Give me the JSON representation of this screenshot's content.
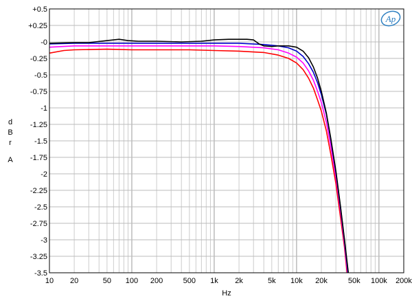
{
  "chart_data": {
    "type": "line",
    "title": "",
    "xlabel": "Hz",
    "ylabel_letters": [
      "d",
      "B",
      "r",
      "A"
    ],
    "x_scale": "log",
    "xlim": [
      10,
      200000
    ],
    "ylim": [
      -3.5,
      0.5
    ],
    "grid": true,
    "logo": "Ap",
    "logo_colors": {
      "stroke": "#2d7fc1",
      "text": "#2d7fc1"
    },
    "x_ticks": [
      {
        "v": 10,
        "label": "10"
      },
      {
        "v": 20,
        "label": "20"
      },
      {
        "v": 50,
        "label": "50"
      },
      {
        "v": 100,
        "label": "100"
      },
      {
        "v": 200,
        "label": "200"
      },
      {
        "v": 500,
        "label": "500"
      },
      {
        "v": 1000,
        "label": "1k"
      },
      {
        "v": 2000,
        "label": "2k"
      },
      {
        "v": 5000,
        "label": "5k"
      },
      {
        "v": 10000,
        "label": "10k"
      },
      {
        "v": 20000,
        "label": "20k"
      },
      {
        "v": 50000,
        "label": "50k"
      },
      {
        "v": 100000,
        "label": "100k"
      },
      {
        "v": 200000,
        "label": "200k"
      }
    ],
    "y_ticks": [
      {
        "v": 0.5,
        "label": "+0.5"
      },
      {
        "v": 0.25,
        "label": "+0.25"
      },
      {
        "v": 0,
        "label": "-0"
      },
      {
        "v": -0.25,
        "label": "-0.25"
      },
      {
        "v": -0.5,
        "label": "-0.5"
      },
      {
        "v": -0.75,
        "label": "-0.75"
      },
      {
        "v": -1,
        "label": "-1"
      },
      {
        "v": -1.25,
        "label": "-1.25"
      },
      {
        "v": -1.5,
        "label": "-1.5"
      },
      {
        "v": -1.75,
        "label": "-1.75"
      },
      {
        "v": -2,
        "label": "-2"
      },
      {
        "v": -2.25,
        "label": "-2.25"
      },
      {
        "v": -2.5,
        "label": "-2.5"
      },
      {
        "v": -2.75,
        "label": "-2.75"
      },
      {
        "v": -3,
        "label": "-3"
      },
      {
        "v": -3.25,
        "label": "-3.25"
      },
      {
        "v": -3.5,
        "label": "-3.5"
      }
    ],
    "series": [
      {
        "color": "#ff0000",
        "points": [
          [
            10,
            -0.17
          ],
          [
            15,
            -0.13
          ],
          [
            20,
            -0.12
          ],
          [
            50,
            -0.11
          ],
          [
            100,
            -0.12
          ],
          [
            200,
            -0.12
          ],
          [
            500,
            -0.12
          ],
          [
            1000,
            -0.13
          ],
          [
            2000,
            -0.14
          ],
          [
            4000,
            -0.16
          ],
          [
            6000,
            -0.2
          ],
          [
            8000,
            -0.25
          ],
          [
            10000,
            -0.32
          ],
          [
            12000,
            -0.42
          ],
          [
            14000,
            -0.55
          ],
          [
            16000,
            -0.7
          ],
          [
            18000,
            -0.88
          ],
          [
            20000,
            -1.05
          ],
          [
            23000,
            -1.35
          ],
          [
            26000,
            -1.7
          ],
          [
            30000,
            -2.15
          ],
          [
            34000,
            -2.65
          ],
          [
            38000,
            -3.1
          ],
          [
            41000,
            -3.5
          ]
        ]
      },
      {
        "color": "#ff00ff",
        "points": [
          [
            10,
            -0.08
          ],
          [
            20,
            -0.06
          ],
          [
            50,
            -0.06
          ],
          [
            100,
            -0.06
          ],
          [
            200,
            -0.06
          ],
          [
            500,
            -0.06
          ],
          [
            1000,
            -0.06
          ],
          [
            2000,
            -0.07
          ],
          [
            4000,
            -0.09
          ],
          [
            6000,
            -0.12
          ],
          [
            8000,
            -0.17
          ],
          [
            10000,
            -0.23
          ],
          [
            12000,
            -0.32
          ],
          [
            14000,
            -0.44
          ],
          [
            16000,
            -0.58
          ],
          [
            18000,
            -0.75
          ],
          [
            20000,
            -0.92
          ],
          [
            23000,
            -1.22
          ],
          [
            26000,
            -1.58
          ],
          [
            30000,
            -2.05
          ],
          [
            34000,
            -2.55
          ],
          [
            38000,
            -3.05
          ],
          [
            41500,
            -3.5
          ]
        ]
      },
      {
        "color": "#0000cc",
        "points": [
          [
            10,
            -0.03
          ],
          [
            20,
            -0.02
          ],
          [
            50,
            -0.02
          ],
          [
            100,
            -0.02
          ],
          [
            200,
            -0.02
          ],
          [
            500,
            -0.02
          ],
          [
            1000,
            -0.02
          ],
          [
            2000,
            -0.02
          ],
          [
            4000,
            -0.04
          ],
          [
            6000,
            -0.06
          ],
          [
            8000,
            -0.09
          ],
          [
            10000,
            -0.14
          ],
          [
            12000,
            -0.22
          ],
          [
            14000,
            -0.33
          ],
          [
            16000,
            -0.46
          ],
          [
            18000,
            -0.62
          ],
          [
            20000,
            -0.8
          ],
          [
            23000,
            -1.1
          ],
          [
            26000,
            -1.48
          ],
          [
            30000,
            -1.98
          ],
          [
            34000,
            -2.5
          ],
          [
            38000,
            -3.0
          ],
          [
            42000,
            -3.5
          ]
        ]
      },
      {
        "color": "#000000",
        "points": [
          [
            10,
            -0.02
          ],
          [
            20,
            -0.01
          ],
          [
            30,
            -0.01
          ],
          [
            50,
            0.02
          ],
          [
            70,
            0.04
          ],
          [
            90,
            0.02
          ],
          [
            120,
            0.01
          ],
          [
            200,
            0.01
          ],
          [
            400,
            0.0
          ],
          [
            700,
            0.01
          ],
          [
            1000,
            0.03
          ],
          [
            1500,
            0.04
          ],
          [
            2000,
            0.04
          ],
          [
            2500,
            0.04
          ],
          [
            3000,
            0.03
          ],
          [
            3500,
            -0.03
          ],
          [
            4000,
            -0.06
          ],
          [
            5000,
            -0.07
          ],
          [
            6000,
            -0.06
          ],
          [
            8000,
            -0.06
          ],
          [
            10000,
            -0.08
          ],
          [
            12000,
            -0.14
          ],
          [
            14000,
            -0.24
          ],
          [
            16000,
            -0.38
          ],
          [
            18000,
            -0.55
          ],
          [
            20000,
            -0.75
          ],
          [
            23000,
            -1.08
          ],
          [
            26000,
            -1.46
          ],
          [
            30000,
            -1.96
          ],
          [
            34000,
            -2.48
          ],
          [
            38000,
            -2.98
          ],
          [
            42500,
            -3.5
          ]
        ]
      }
    ]
  }
}
